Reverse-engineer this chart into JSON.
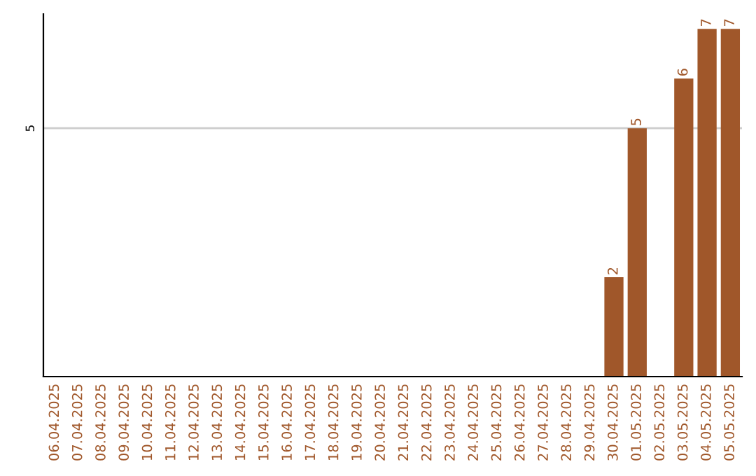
{
  "chart_data": {
    "type": "bar",
    "categories": [
      "06.04.2025",
      "07.04.2025",
      "08.04.2025",
      "09.04.2025",
      "10.04.2025",
      "11.04.2025",
      "12.04.2025",
      "13.04.2025",
      "14.04.2025",
      "15.04.2025",
      "16.04.2025",
      "17.04.2025",
      "18.04.2025",
      "19.04.2025",
      "20.04.2025",
      "21.04.2025",
      "22.04.2025",
      "23.04.2025",
      "24.04.2025",
      "25.04.2025",
      "26.04.2025",
      "27.04.2025",
      "28.04.2025",
      "29.04.2025",
      "30.04.2025",
      "01.05.2025",
      "02.05.2025",
      "03.05.2025",
      "04.05.2025",
      "05.05.2025"
    ],
    "values": [
      null,
      null,
      null,
      null,
      null,
      null,
      null,
      null,
      null,
      null,
      null,
      null,
      null,
      null,
      null,
      null,
      null,
      null,
      null,
      null,
      null,
      null,
      null,
      null,
      2,
      5,
      null,
      6,
      7,
      7
    ],
    "color": "#a0572a",
    "ylim": [
      0,
      7.3
    ],
    "yticks": [
      5
    ],
    "grid": "y",
    "data_labels": true
  }
}
